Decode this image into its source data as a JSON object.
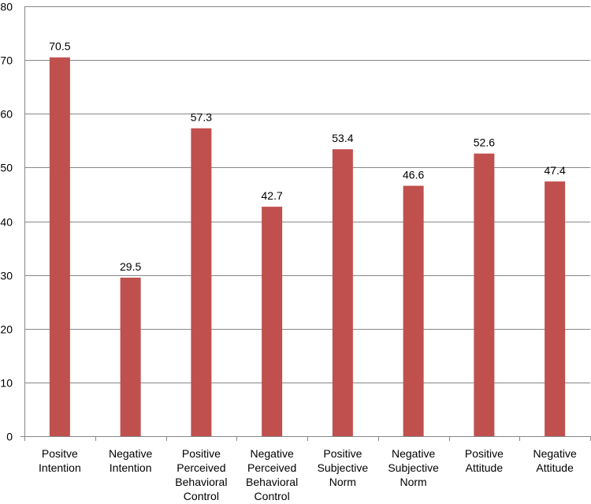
{
  "chart_data": {
    "type": "bar",
    "title": "",
    "xlabel": "",
    "ylabel": "",
    "ylim": [
      0,
      80
    ],
    "y_ticks": [
      "0",
      "10",
      "20",
      "30",
      "40",
      "50",
      "60",
      "70",
      "80"
    ],
    "grid": true,
    "legend": "none",
    "bar_color": "#C0504D",
    "categories": [
      [
        "Positve",
        "Intention"
      ],
      [
        "Negative",
        "Intention"
      ],
      [
        "Positive",
        "Perceived",
        "Behavioral",
        "Control"
      ],
      [
        "Negative",
        "Perceived",
        "Behavioral",
        "Control"
      ],
      [
        "Positive",
        "Subjective",
        "Norm"
      ],
      [
        "Negative",
        "Subjective",
        "Norm"
      ],
      [
        "Positive",
        "Attitude"
      ],
      [
        "Negative",
        "Attitude"
      ]
    ],
    "values": [
      70.5,
      29.5,
      57.3,
      42.7,
      53.4,
      46.6,
      52.6,
      47.4
    ],
    "data_labels": [
      "70.5",
      "29.5",
      "57.3",
      "42.7",
      "53.4",
      "46.6",
      "52.6",
      "47.4"
    ]
  }
}
